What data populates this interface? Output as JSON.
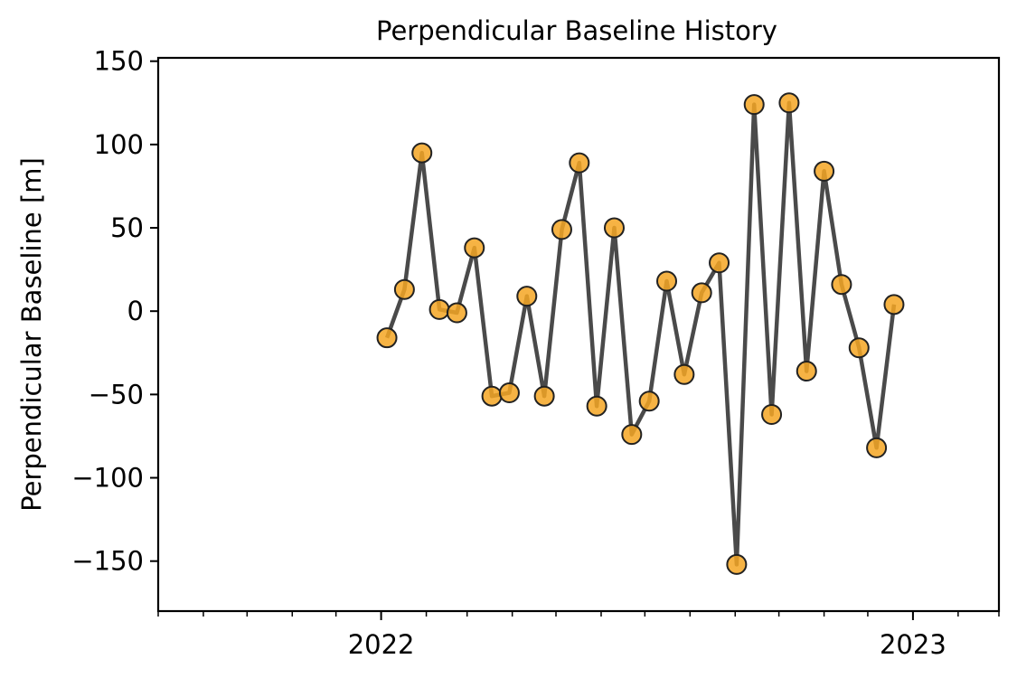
{
  "chart_data": {
    "type": "line",
    "title": "Perpendicular Baseline History",
    "xlabel": "",
    "ylabel": "Perpendicular Baseline [m]",
    "x_tick_labels": [
      {
        "date": "2022-01-01",
        "label": "2022"
      },
      {
        "date": "2023-01-01",
        "label": "2023"
      }
    ],
    "y_ticks": [
      150,
      100,
      50,
      0,
      -50,
      -100,
      -150
    ],
    "xlim": [
      "2021-08-01",
      "2023-03-01"
    ],
    "ylim": [
      -180,
      152
    ],
    "grid": false,
    "series": [
      {
        "line_color": "#404040",
        "marker_color": "#f5a623",
        "points": [
          {
            "x": "2022-01-05",
            "y": -16
          },
          {
            "x": "2022-01-17",
            "y": 13
          },
          {
            "x": "2022-01-29",
            "y": 95
          },
          {
            "x": "2022-02-10",
            "y": 1
          },
          {
            "x": "2022-02-22",
            "y": -1
          },
          {
            "x": "2022-03-06",
            "y": 38
          },
          {
            "x": "2022-03-18",
            "y": -51
          },
          {
            "x": "2022-03-30",
            "y": -49
          },
          {
            "x": "2022-04-11",
            "y": 9
          },
          {
            "x": "2022-04-23",
            "y": -51
          },
          {
            "x": "2022-05-05",
            "y": 49
          },
          {
            "x": "2022-05-17",
            "y": 89
          },
          {
            "x": "2022-05-29",
            "y": -57
          },
          {
            "x": "2022-06-10",
            "y": 50
          },
          {
            "x": "2022-06-22",
            "y": -74
          },
          {
            "x": "2022-07-04",
            "y": -54
          },
          {
            "x": "2022-07-16",
            "y": 18
          },
          {
            "x": "2022-07-28",
            "y": -38
          },
          {
            "x": "2022-08-09",
            "y": 11
          },
          {
            "x": "2022-08-21",
            "y": 29
          },
          {
            "x": "2022-09-02",
            "y": -152
          },
          {
            "x": "2022-09-14",
            "y": 124
          },
          {
            "x": "2022-09-26",
            "y": -62
          },
          {
            "x": "2022-10-08",
            "y": 125
          },
          {
            "x": "2022-10-20",
            "y": -36
          },
          {
            "x": "2022-11-01",
            "y": 84
          },
          {
            "x": "2022-11-13",
            "y": 16
          },
          {
            "x": "2022-11-25",
            "y": -22
          },
          {
            "x": "2022-12-07",
            "y": -82
          },
          {
            "x": "2022-12-19",
            "y": 4
          }
        ]
      }
    ]
  }
}
